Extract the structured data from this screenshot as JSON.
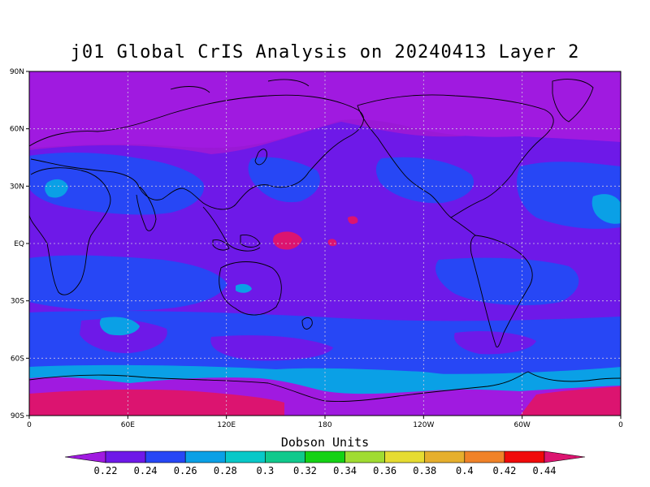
{
  "title": "j01 Global CrIS Analysis on 20240413 Layer 2",
  "map": {
    "projection": "equirectangular",
    "lon_range": [
      0,
      360
    ],
    "lat_range": [
      -90,
      90
    ],
    "grid": true,
    "background_color": "#9a19d6"
  },
  "axes": {
    "x_ticks": [
      "0",
      "60E",
      "120E",
      "180",
      "120W",
      "60W",
      "0"
    ],
    "y_ticks": [
      "90N",
      "60N",
      "30N",
      "EQ",
      "30S",
      "60S",
      "90S"
    ]
  },
  "colorbar": {
    "title": "Dobson Units",
    "levels": [
      "0.22",
      "0.24",
      "0.26",
      "0.28",
      "0.3",
      "0.32",
      "0.34",
      "0.36",
      "0.38",
      "0.4",
      "0.42",
      "0.44"
    ],
    "colors": [
      "#a01ae0",
      "#6e19e8",
      "#2747f5",
      "#0aa0e6",
      "#08c8c8",
      "#10c98c",
      "#14d214",
      "#a0dc32",
      "#e6dc32",
      "#e6af2d",
      "#f08228",
      "#f00a0a",
      "#dc1470"
    ]
  }
}
